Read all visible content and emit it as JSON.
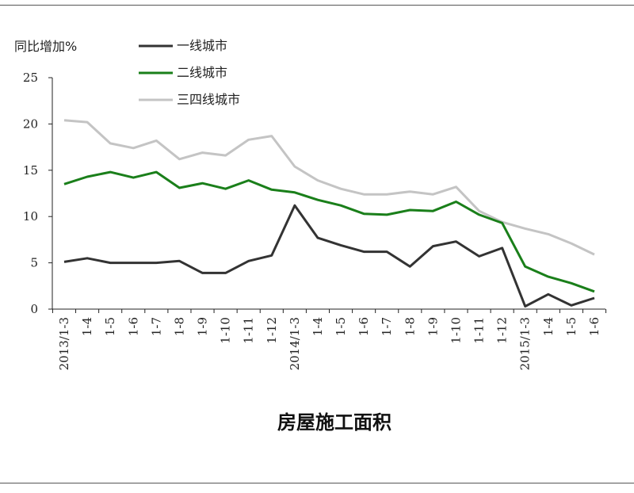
{
  "chart_data": {
    "type": "line",
    "title": "房屋施工面积",
    "ylabel": "同比增加%",
    "xlabel": "",
    "ylim": [
      0,
      25
    ],
    "yticks": [
      0,
      5,
      10,
      15,
      20,
      25
    ],
    "grid": false,
    "legend_position": "top-left",
    "categories": [
      "2013/1-3",
      "1-4",
      "1-5",
      "1-6",
      "1-7",
      "1-8",
      "1-9",
      "1-10",
      "1-11",
      "1-12",
      "2014/1-3",
      "1-4",
      "1-5",
      "1-6",
      "1-7",
      "1-8",
      "1-9",
      "1-10",
      "1-11",
      "1-12",
      "2015/1-3",
      "1-4",
      "1-5",
      "1-6"
    ],
    "series": [
      {
        "name": "一线城市",
        "color": "#333333",
        "values": [
          5.1,
          5.5,
          5.0,
          5.0,
          5.0,
          5.2,
          3.9,
          3.9,
          5.2,
          5.8,
          11.2,
          7.7,
          6.9,
          6.2,
          6.2,
          4.6,
          6.8,
          7.3,
          5.7,
          6.6,
          0.3,
          1.6,
          0.4,
          1.2
        ]
      },
      {
        "name": "二线城市",
        "color": "#1a7f1a",
        "values": [
          13.5,
          14.3,
          14.8,
          14.2,
          14.8,
          13.1,
          13.6,
          13.0,
          13.9,
          12.9,
          12.6,
          11.8,
          11.2,
          10.3,
          10.2,
          10.7,
          10.6,
          11.6,
          10.2,
          9.3,
          4.6,
          3.5,
          2.8,
          1.9
        ]
      },
      {
        "name": "三四线城市",
        "color": "#c4c4c4",
        "values": [
          20.4,
          20.2,
          17.9,
          17.4,
          18.2,
          16.2,
          16.9,
          16.6,
          18.3,
          18.7,
          15.4,
          13.9,
          13.0,
          12.4,
          12.4,
          12.7,
          12.4,
          13.2,
          10.6,
          9.4,
          8.7,
          8.1,
          7.1,
          5.9
        ]
      }
    ]
  }
}
